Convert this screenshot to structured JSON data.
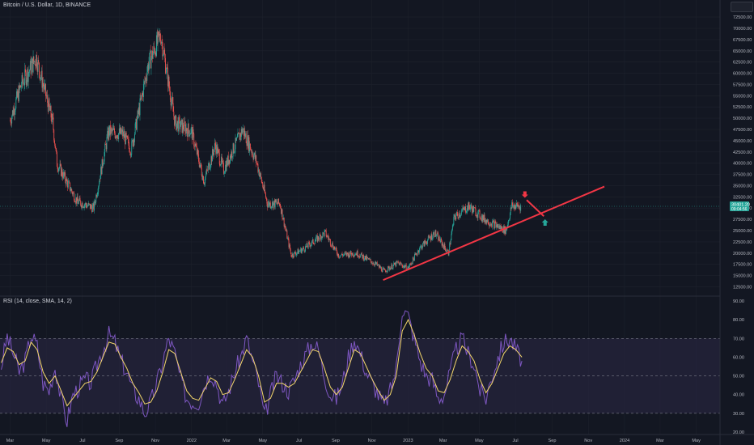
{
  "header": {
    "title": "Bitcoin / U.S. Dollar, 1D, BINANCE"
  },
  "price_tag": {
    "price": "30401.20",
    "timer": "09:04:56"
  },
  "rsi": {
    "label": "RSI (14, close, SMA, 14, 2)",
    "levels": [
      70,
      50,
      30
    ],
    "scale": [
      "90.00",
      "80.00",
      "70.00",
      "60.00",
      "50.00",
      "40.00",
      "30.00",
      "20.00"
    ]
  },
  "colors": {
    "background": "#131722",
    "up": "#26a69a",
    "down": "#ef5350",
    "trendline": "#f23645",
    "rsi_line": "#7e57c2",
    "rsi_ma": "#f5d86b",
    "rsi_band": "#2a2643",
    "grid": "#1e222d"
  },
  "icons": {
    "down_arrow": "arrow-down-icon",
    "up_arrow": "arrow-up-icon"
  },
  "chart_data": [
    {
      "type": "candlestick",
      "title": "Bitcoin / U.S. Dollar, 1D, BINANCE",
      "x_ticks": [
        "Mar",
        "May",
        "Jul",
        "Sep",
        "Nov",
        "2022",
        "Mar",
        "May",
        "Jul",
        "Sep",
        "Nov",
        "2023",
        "Mar",
        "May",
        "Jul",
        "Sep",
        "Nov",
        "2024",
        "Mar",
        "May"
      ],
      "y_ticks": [
        "72500.00",
        "70000.00",
        "67500.00",
        "65000.00",
        "62500.00",
        "60000.00",
        "57500.00",
        "55000.00",
        "52500.00",
        "50000.00",
        "47500.00",
        "45000.00",
        "42500.00",
        "40000.00",
        "37500.00",
        "35000.00",
        "32500.00",
        "30000.00",
        "27500.00",
        "25000.00",
        "22500.00",
        "20000.00",
        "17500.00",
        "15000.00",
        "12500.00"
      ],
      "ylim": [
        11500,
        74500
      ],
      "x": [
        "2021-03-01",
        "2021-03-20",
        "2021-04-14",
        "2021-05-12",
        "2021-05-19",
        "2021-06-22",
        "2021-07-20",
        "2021-08-14",
        "2021-09-07",
        "2021-09-21",
        "2021-10-20",
        "2021-11-10",
        "2021-12-04",
        "2022-01-01",
        "2022-01-22",
        "2022-02-10",
        "2022-02-24",
        "2022-03-28",
        "2022-04-20",
        "2022-05-09",
        "2022-05-30",
        "2022-06-13",
        "2022-06-18",
        "2022-07-10",
        "2022-08-14",
        "2022-09-06",
        "2022-10-06",
        "2022-11-08",
        "2022-11-21",
        "2022-12-15",
        "2023-01-01",
        "2023-01-20",
        "2023-02-15",
        "2023-03-10",
        "2023-03-20",
        "2023-04-14",
        "2023-05-10",
        "2023-06-15",
        "2023-06-25",
        "2023-07-10"
      ],
      "close": [
        49500,
        57500,
        63500,
        49000,
        40000,
        31500,
        30000,
        47000,
        46500,
        43000,
        62000,
        68500,
        49000,
        47000,
        36000,
        44000,
        38500,
        47500,
        40500,
        31000,
        31000,
        22500,
        19500,
        21000,
        24500,
        19500,
        20000,
        17500,
        16000,
        17800,
        16600,
        21000,
        24500,
        20000,
        28000,
        30400,
        27500,
        25000,
        30500,
        30400
      ],
      "trendline": {
        "from": [
          "2022-11-20",
          14000
        ],
        "to": [
          "2023-11-28",
          34800
        ]
      },
      "projection": {
        "from": [
          "2023-07-20",
          31800
        ],
        "to": [
          "2023-08-18",
          28200
        ]
      },
      "markers": [
        {
          "icon": "arrow-down-icon",
          "date": "2023-07-17",
          "price": 33000
        },
        {
          "icon": "arrow-up-icon",
          "date": "2023-08-20",
          "price": 26800
        }
      ]
    },
    {
      "type": "line",
      "ylim": [
        20,
        90
      ],
      "series": [
        {
          "values": [
            55,
            71,
            62,
            52,
            58,
            72,
            66,
            46,
            42,
            55,
            38,
            26,
            40,
            44,
            48,
            46,
            56,
            64,
            72,
            68,
            58,
            52,
            42,
            38,
            30,
            36,
            46,
            58,
            70,
            62,
            48,
            38,
            36,
            36,
            46,
            52,
            46,
            34,
            42,
            52,
            60,
            70,
            58,
            46,
            28,
            40,
            50,
            46,
            42,
            48,
            56,
            62,
            68,
            64,
            50,
            40,
            38,
            46,
            60,
            70,
            62,
            52,
            46,
            40,
            34,
            42,
            54,
            86,
            82,
            70,
            58,
            50,
            48,
            38,
            40,
            52,
            64,
            70,
            62,
            56,
            42,
            38,
            50,
            60,
            68,
            70,
            64,
            58
          ]
        },
        {
          "values": [
            57,
            65,
            63,
            56,
            58,
            68,
            64,
            52,
            46,
            50,
            42,
            34,
            38,
            42,
            46,
            47,
            52,
            60,
            68,
            67,
            60,
            54,
            46,
            41,
            35,
            36,
            42,
            52,
            64,
            62,
            52,
            42,
            38,
            37,
            43,
            49,
            47,
            40,
            41,
            48,
            56,
            64,
            60,
            50,
            36,
            38,
            46,
            46,
            44,
            46,
            52,
            58,
            64,
            63,
            54,
            44,
            40,
            44,
            54,
            64,
            62,
            55,
            48,
            42,
            37,
            40,
            50,
            74,
            80,
            72,
            62,
            54,
            50,
            42,
            41,
            48,
            58,
            66,
            63,
            58,
            48,
            41,
            46,
            54,
            62,
            66,
            64,
            60
          ]
        }
      ]
    }
  ]
}
